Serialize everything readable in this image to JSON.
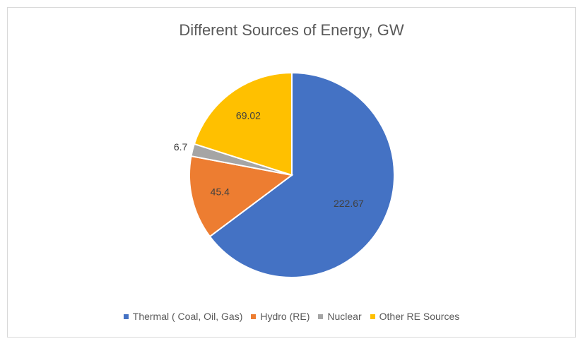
{
  "chart_data": {
    "type": "pie",
    "title": "Different Sources of Energy, GW",
    "categories": [
      "Thermal ( Coal, Oil, Gas)",
      "Hydro (RE)",
      "Nuclear",
      "Other RE Sources"
    ],
    "values": [
      222.67,
      45.4,
      6.7,
      69.02
    ],
    "data_labels": [
      "222.67",
      "45.4",
      "6.7",
      "69.02"
    ],
    "colors": [
      "#4472C4",
      "#ED7D31",
      "#A5A5A5",
      "#FFC000"
    ],
    "legend_position": "bottom",
    "start_angle_deg": 0,
    "direction": "clockwise"
  }
}
